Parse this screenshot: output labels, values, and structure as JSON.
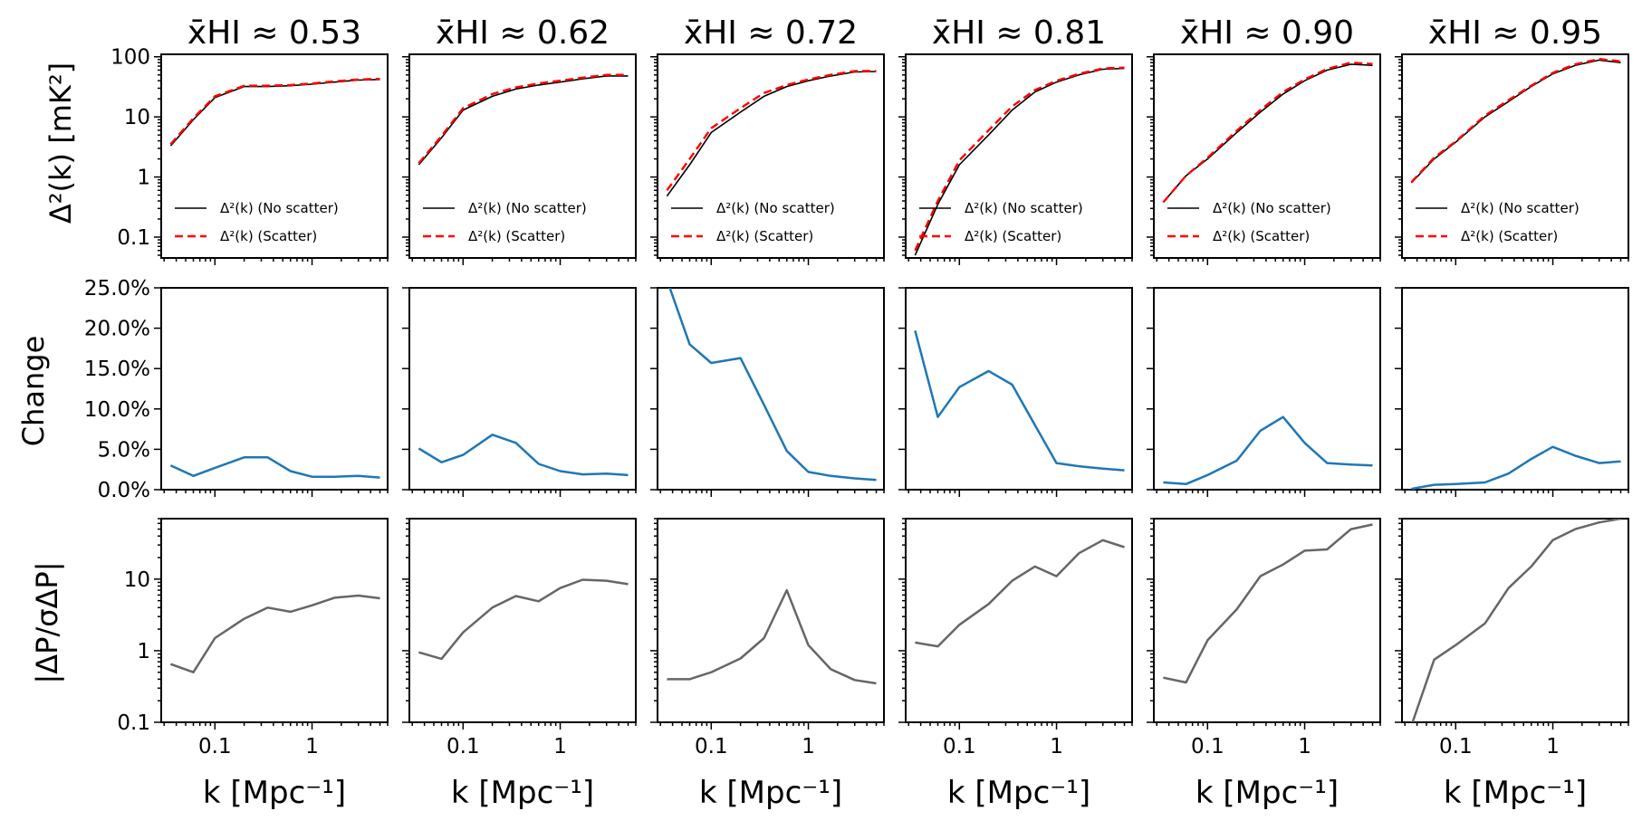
{
  "figure": {
    "xlabel": "k [Mpc⁻¹]",
    "panel_titles": [
      "x̄HI ≈ 0.53",
      "x̄HI ≈ 0.62",
      "x̄HI ≈ 0.72",
      "x̄HI ≈ 0.81",
      "x̄HI ≈ 0.90",
      "x̄HI ≈ 0.95"
    ],
    "row_ylabels": [
      "Δ²(k) [mK²]",
      "Change",
      "|ΔP/σΔP|"
    ],
    "legend": [
      "Δ²(k) (No scatter)",
      "Δ²(k) (Scatter)"
    ],
    "colors": {
      "no_scatter": "#000000",
      "scatter": "#ff0000",
      "change": "#1f77b4",
      "ratio": "#666666"
    }
  },
  "chart_data": {
    "type": "line",
    "x": [
      0.035,
      0.06,
      0.1,
      0.2,
      0.35,
      0.6,
      1.0,
      1.7,
      3.0,
      5.0
    ],
    "xscale": "log",
    "xlim": [
      0.028,
      6.0
    ],
    "xticks": [
      0.1,
      1
    ],
    "xtick_labels": [
      "0.1",
      "1"
    ],
    "rows": [
      {
        "name": "power_spectrum",
        "yscale": "log",
        "ylim": [
          0.045,
          110
        ],
        "yticks": [
          0.1,
          1,
          10,
          100
        ],
        "ytick_labels": [
          "0.1",
          "1",
          "10",
          "100"
        ],
        "legend_position": "lower-right"
      },
      {
        "name": "change",
        "yscale": "linear",
        "ylim": [
          0,
          25
        ],
        "yticks": [
          0,
          5,
          10,
          15,
          20,
          25
        ],
        "ytick_labels": [
          "0.0%",
          "5.0%",
          "10.0%",
          "15.0%",
          "20.0%",
          "25.0%"
        ]
      },
      {
        "name": "ratio",
        "yscale": "log",
        "ylim": [
          0.1,
          70
        ],
        "yticks": [
          0.1,
          1,
          10
        ],
        "ytick_labels": [
          "0.1",
          "1",
          "10"
        ]
      }
    ],
    "panels": [
      {
        "title": "x̄HI ≈ 0.53",
        "no_scatter": [
          3.3,
          9,
          21,
          32,
          32,
          33,
          35,
          38,
          41,
          42
        ],
        "scatter": [
          3.5,
          9.5,
          22,
          33,
          33,
          34,
          36,
          39,
          42,
          43
        ],
        "change": [
          3.0,
          1.7,
          2.7,
          4.0,
          4.0,
          2.3,
          1.6,
          1.6,
          1.7,
          1.5
        ],
        "ratio": [
          0.65,
          0.5,
          1.5,
          2.8,
          4.0,
          3.5,
          4.3,
          5.5,
          5.9,
          5.4
        ]
      },
      {
        "title": "x̄HI ≈ 0.62",
        "no_scatter": [
          1.6,
          4.5,
          13,
          22,
          29,
          34,
          38,
          43,
          48,
          48
        ],
        "scatter": [
          1.7,
          4.8,
          14,
          24,
          31,
          36,
          40,
          45,
          50,
          50
        ],
        "change": [
          5.1,
          3.4,
          4.3,
          6.8,
          5.8,
          3.2,
          2.3,
          1.9,
          2.0,
          1.8
        ],
        "ratio": [
          0.95,
          0.77,
          1.8,
          4.0,
          5.8,
          4.9,
          7.5,
          9.8,
          9.5,
          8.5
        ]
      },
      {
        "title": "x̄HI ≈ 0.72",
        "no_scatter": [
          0.48,
          1.6,
          5.5,
          12,
          22,
          32,
          40,
          48,
          56,
          57
        ],
        "scatter": [
          0.6,
          2.0,
          6.5,
          14,
          25,
          34,
          42,
          50,
          58,
          58
        ],
        "change": [
          26,
          18,
          15.7,
          16.3,
          10.5,
          4.8,
          2.2,
          1.7,
          1.4,
          1.2
        ],
        "ratio": [
          0.4,
          0.4,
          0.5,
          0.78,
          1.5,
          7.0,
          1.2,
          0.55,
          0.39,
          0.35
        ]
      },
      {
        "title": "x̄HI ≈ 0.81",
        "no_scatter": [
          0.05,
          0.35,
          1.6,
          5,
          13,
          26,
          38,
          50,
          62,
          64
        ],
        "scatter": [
          0.06,
          0.4,
          1.9,
          6,
          15,
          28,
          40,
          52,
          64,
          66
        ],
        "change": [
          19.7,
          9.0,
          12.7,
          14.7,
          13.0,
          8.0,
          3.3,
          2.9,
          2.6,
          2.4
        ],
        "ratio": [
          1.3,
          1.15,
          2.3,
          4.5,
          9.5,
          15,
          11,
          23,
          35,
          28
        ]
      },
      {
        "title": "x̄HI ≈ 0.90",
        "no_scatter": [
          0.38,
          1.05,
          2.0,
          5.5,
          12,
          24,
          40,
          60,
          75,
          72
        ],
        "scatter": [
          0.38,
          1.05,
          2.1,
          5.9,
          13,
          26,
          42,
          63,
          80,
          76
        ],
        "change": [
          0.9,
          0.7,
          1.8,
          3.6,
          7.3,
          9.0,
          5.8,
          3.3,
          3.1,
          3.0
        ],
        "ratio": [
          0.42,
          0.36,
          1.4,
          3.8,
          11,
          16,
          25,
          26,
          50,
          58
        ]
      },
      {
        "title": "x̄HI ≈ 0.95",
        "no_scatter": [
          0.8,
          2.0,
          3.8,
          10,
          18,
          32,
          52,
          72,
          88,
          80
        ],
        "scatter": [
          0.82,
          2.1,
          3.9,
          10.5,
          19,
          33,
          54,
          75,
          92,
          84
        ],
        "change": [
          0.1,
          0.6,
          0.7,
          0.9,
          2.0,
          3.8,
          5.3,
          4.2,
          3.3,
          3.5
        ],
        "ratio": [
          0.09,
          0.75,
          1.2,
          2.4,
          7.5,
          15,
          35,
          50,
          62,
          70
        ]
      }
    ]
  }
}
